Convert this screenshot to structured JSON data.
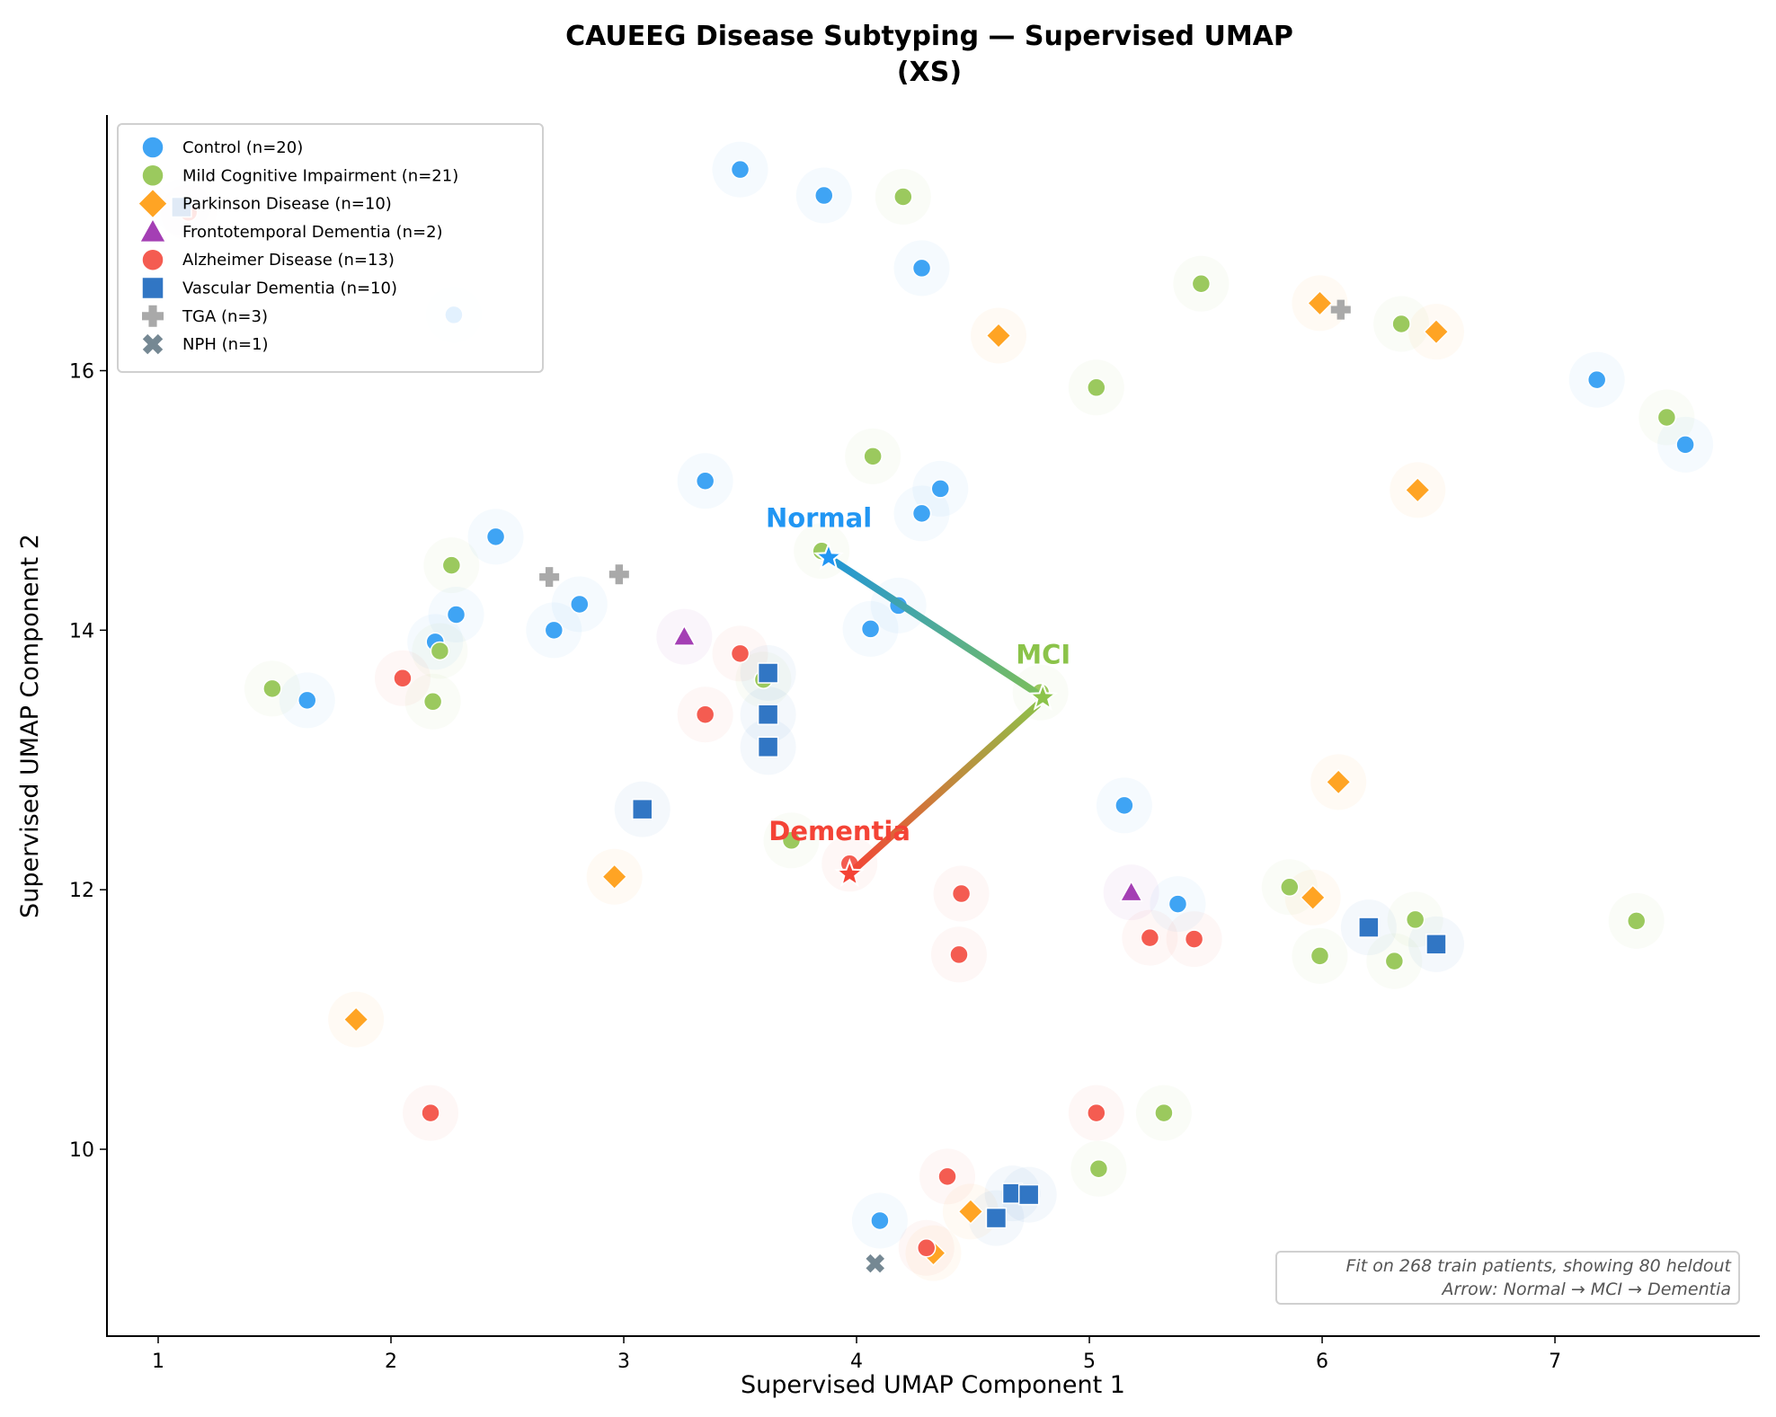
{
  "chart_data": {
    "type": "scatter",
    "title": "CAUEEG Disease Subtyping — Supervised UMAP",
    "subtitle": "(XS)",
    "xlabel": "Supervised UMAP Component 1",
    "ylabel": "Supervised UMAP Component 2",
    "xlim": [
      0.78,
      7.88
    ],
    "ylim": [
      8.56,
      17.97
    ],
    "xticks": [
      1,
      2,
      3,
      4,
      5,
      6,
      7
    ],
    "yticks": [
      10,
      12,
      14,
      16
    ],
    "grid": false,
    "legend_position": "top-left",
    "series": [
      {
        "name": "Control (n=20)",
        "marker": "circle",
        "color": "#3fa4f4",
        "points": [
          [
            3.5,
            17.55
          ],
          [
            3.86,
            17.35
          ],
          [
            4.28,
            16.79
          ],
          [
            2.27,
            16.43
          ],
          [
            7.18,
            15.93
          ],
          [
            7.56,
            15.43
          ],
          [
            3.35,
            15.15
          ],
          [
            4.36,
            15.09
          ],
          [
            4.28,
            14.9
          ],
          [
            2.45,
            14.72
          ],
          [
            2.81,
            14.2
          ],
          [
            2.28,
            14.12
          ],
          [
            2.7,
            14.0
          ],
          [
            2.19,
            13.91
          ],
          [
            1.64,
            13.46
          ],
          [
            4.18,
            14.19
          ],
          [
            4.06,
            14.01
          ],
          [
            5.15,
            12.65
          ],
          [
            5.38,
            11.89
          ],
          [
            4.1,
            9.45
          ]
        ]
      },
      {
        "name": "Mild Cognitive Impairment (n=21)",
        "marker": "circle",
        "color": "#9bc95e",
        "points": [
          [
            4.2,
            17.34
          ],
          [
            5.48,
            16.67
          ],
          [
            6.34,
            16.36
          ],
          [
            5.03,
            15.87
          ],
          [
            7.48,
            15.64
          ],
          [
            4.07,
            15.34
          ],
          [
            2.26,
            14.5
          ],
          [
            3.85,
            14.61
          ],
          [
            2.21,
            13.84
          ],
          [
            1.49,
            13.55
          ],
          [
            2.18,
            13.45
          ],
          [
            3.6,
            13.62
          ],
          [
            5.86,
            12.02
          ],
          [
            6.4,
            11.77
          ],
          [
            5.99,
            11.49
          ],
          [
            6.31,
            11.45
          ],
          [
            7.35,
            11.76
          ],
          [
            5.32,
            10.28
          ],
          [
            5.04,
            9.85
          ],
          [
            3.72,
            12.38
          ],
          [
            4.79,
            13.52
          ]
        ]
      },
      {
        "name": "Parkinson Disease (n=10)",
        "marker": "diamond",
        "color": "#ffa424",
        "points": [
          [
            4.61,
            16.27
          ],
          [
            5.99,
            16.52
          ],
          [
            6.49,
            16.3
          ],
          [
            6.41,
            15.08
          ],
          [
            6.07,
            12.83
          ],
          [
            5.96,
            11.94
          ],
          [
            2.96,
            12.1
          ],
          [
            1.85,
            11.0
          ],
          [
            4.49,
            9.52
          ],
          [
            4.33,
            9.2
          ]
        ]
      },
      {
        "name": "Frontotemporal Dementia (n=2)",
        "marker": "triangle",
        "color": "#a43fb4",
        "points": [
          [
            3.26,
            13.95
          ],
          [
            5.18,
            11.98
          ]
        ]
      },
      {
        "name": "Alzheimer Disease (n=13)",
        "marker": "circle",
        "color": "#f45c51",
        "points": [
          [
            3.5,
            13.82
          ],
          [
            2.05,
            13.63
          ],
          [
            3.35,
            13.35
          ],
          [
            3.97,
            12.2
          ],
          [
            4.45,
            11.97
          ],
          [
            4.44,
            11.5
          ],
          [
            5.26,
            11.63
          ],
          [
            5.45,
            11.62
          ],
          [
            2.17,
            10.28
          ],
          [
            5.03,
            10.28
          ],
          [
            4.39,
            9.79
          ],
          [
            4.3,
            9.24
          ],
          [
            1.13,
            17.22
          ]
        ]
      },
      {
        "name": "Vascular Dementia (n=10)",
        "marker": "square",
        "color": "#3176c4",
        "points": [
          [
            3.62,
            13.67
          ],
          [
            3.62,
            13.35
          ],
          [
            3.62,
            13.1
          ],
          [
            3.08,
            12.62
          ],
          [
            6.2,
            11.71
          ],
          [
            6.49,
            11.58
          ],
          [
            4.67,
            9.66
          ],
          [
            4.74,
            9.65
          ],
          [
            4.6,
            9.47
          ],
          [
            1.1,
            17.26
          ]
        ]
      },
      {
        "name": "TGA (n=3)",
        "marker": "plus",
        "color": "#a9a9a9",
        "points": [
          [
            2.68,
            14.41
          ],
          [
            2.98,
            14.43
          ],
          [
            6.08,
            16.47
          ]
        ]
      },
      {
        "name": "NPH (n=1)",
        "marker": "x",
        "color": "#758893",
        "points": [
          [
            4.08,
            9.12
          ]
        ]
      }
    ],
    "anchors": [
      {
        "label": "Normal",
        "x": 3.88,
        "y": 14.56,
        "color": "#2196f3"
      },
      {
        "label": "MCI",
        "x": 4.8,
        "y": 13.48,
        "color": "#8bc34a"
      },
      {
        "label": "Dementia",
        "x": 3.97,
        "y": 12.12,
        "color": "#f44336"
      }
    ],
    "annotation": {
      "line1": "Fit on 268 train patients, showing 80 heldout",
      "line2": "Arrow: Normal → MCI → Dementia",
      "position": "bottom-right"
    }
  }
}
